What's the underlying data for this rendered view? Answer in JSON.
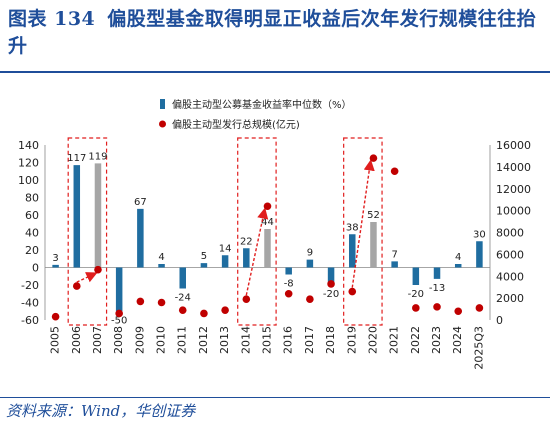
{
  "header": {
    "figure_label": "图表 134",
    "title": "偏股型基金取得明显正收益后次年发行规模往往抬升"
  },
  "footer": {
    "source": "资料来源：Wind，华创证券"
  },
  "colors": {
    "bar": "#1f6da0",
    "bar_highlight": "#a6a6a6",
    "dot": "#c00000",
    "box": "#e11e1e",
    "title": "#1f4e9a"
  },
  "chart_data": {
    "type": "bar",
    "categories": [
      "2005",
      "2006",
      "2007",
      "2008",
      "2009",
      "2010",
      "2011",
      "2012",
      "2013",
      "2014",
      "2015",
      "2016",
      "2017",
      "2018",
      "2019",
      "2020",
      "2021",
      "2022",
      "2023",
      "2024",
      "2025Q3"
    ],
    "legend": {
      "position": "top-right"
    },
    "grid": false,
    "series": [
      {
        "name": "偏股主动型公募基金收益率中位数（%）",
        "type": "bar",
        "axis": "left",
        "values": [
          3,
          117,
          119,
          -50,
          67,
          4,
          -24,
          5,
          14,
          22,
          44,
          -8,
          9,
          -20,
          38,
          52,
          7,
          -20,
          -13,
          4,
          30
        ],
        "labels": [
          "3",
          "117",
          "119",
          "-50",
          "67",
          "4",
          "-24",
          "5",
          "14",
          "22",
          "44",
          "-8",
          "9",
          "-20",
          "38",
          "52",
          "7",
          "-20",
          "-13",
          "4",
          "30"
        ],
        "highlight_categories": [
          "2007",
          "2015",
          "2020"
        ]
      },
      {
        "name": "偏股主动型发行总规模(亿元)",
        "type": "scatter",
        "axis": "right",
        "values": [
          300,
          3100,
          4600,
          600,
          1700,
          1600,
          900,
          600,
          900,
          1900,
          10400,
          2400,
          1900,
          3300,
          2600,
          14800,
          13600,
          1100,
          1200,
          800,
          1100
        ]
      }
    ],
    "y_left": {
      "lim": [
        -60,
        140
      ],
      "ticks": [
        -60,
        -40,
        -20,
        0,
        20,
        40,
        60,
        80,
        100,
        120,
        140
      ]
    },
    "y_right": {
      "lim": [
        0,
        16000
      ],
      "ticks": [
        0,
        2000,
        4000,
        6000,
        8000,
        10000,
        12000,
        14000,
        16000
      ]
    },
    "annotations": {
      "boxes": [
        {
          "from": "2006",
          "to": "2007"
        },
        {
          "from": "2014",
          "to": "2015"
        },
        {
          "from": "2019",
          "to": "2020"
        }
      ],
      "arrows": [
        {
          "from": "2006",
          "to": "2007"
        },
        {
          "from": "2014",
          "to": "2015"
        },
        {
          "from": "2019",
          "to": "2020"
        }
      ]
    }
  }
}
